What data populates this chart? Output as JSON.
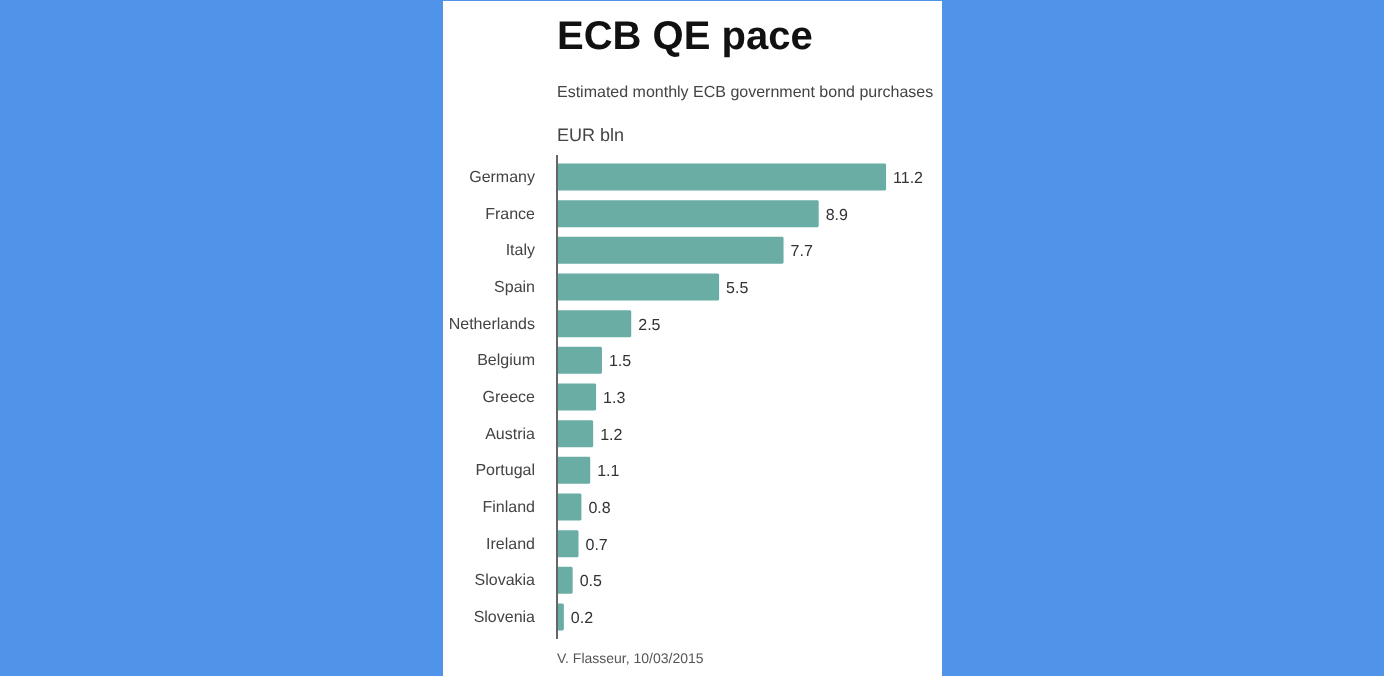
{
  "chart_data": {
    "type": "bar",
    "orientation": "horizontal",
    "title": "ECB QE pace",
    "subtitle": "Estimated monthly ECB government bond purchases",
    "xlabel": "EUR bln",
    "categories": [
      "Germany",
      "France",
      "Italy",
      "Spain",
      "Netherlands",
      "Belgium",
      "Greece",
      "Austria",
      "Portugal",
      "Finland",
      "Ireland",
      "Slovakia",
      "Slovenia"
    ],
    "values": [
      11.2,
      8.9,
      7.7,
      5.5,
      2.5,
      1.5,
      1.3,
      1.2,
      1.1,
      0.8,
      0.7,
      0.5,
      0.2
    ],
    "color": "#6aada5",
    "data_labels": true,
    "grid": false,
    "annotations": [
      "V. Flasseur, 10/03/2015"
    ]
  }
}
